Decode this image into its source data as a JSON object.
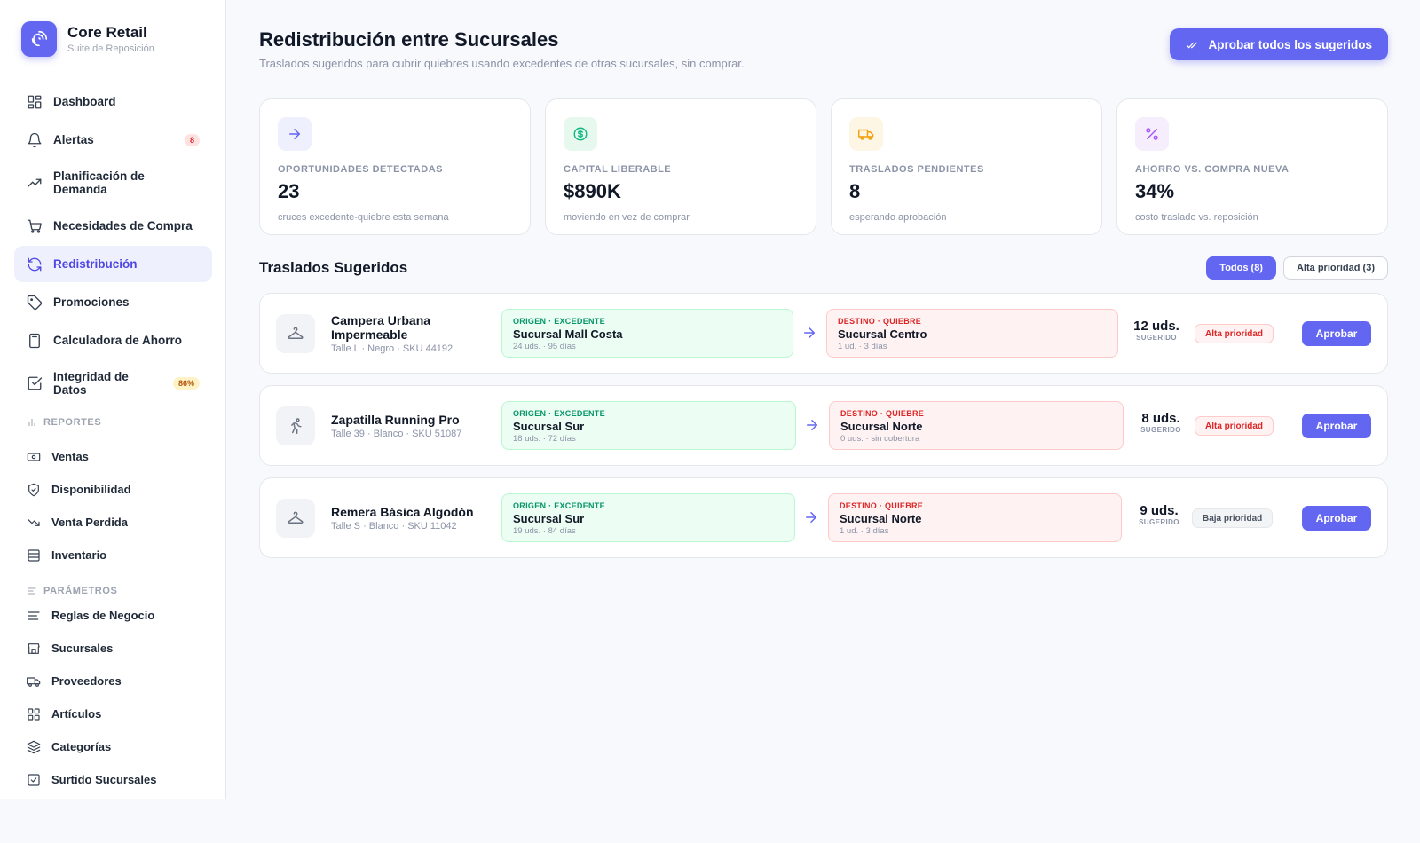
{
  "brand": {
    "title": "Core Retail",
    "subtitle": "Suite de Reposición"
  },
  "nav": [
    {
      "label": "Dashboard",
      "icon": "dashboard-icon"
    },
    {
      "label": "Alertas",
      "icon": "bell-icon",
      "badge": "8"
    },
    {
      "label": "Planificación de Demanda",
      "icon": "trend-icon"
    },
    {
      "label": "Necesidades de Compra",
      "icon": "cart-icon"
    },
    {
      "label": "Redistribución",
      "icon": "refresh-icon",
      "active": true
    },
    {
      "label": "Promociones",
      "icon": "tag-icon"
    },
    {
      "label": "Calculadora de Ahorro",
      "icon": "calculator-icon"
    },
    {
      "label": "Integridad de Datos",
      "icon": "check-square-icon",
      "badge": "86%"
    }
  ],
  "reportes": {
    "label": "REPORTES",
    "items": [
      {
        "label": "Ventas",
        "icon": "money-icon"
      },
      {
        "label": "Disponibilidad",
        "icon": "shield-icon"
      },
      {
        "label": "Venta Perdida",
        "icon": "trend-down-icon"
      },
      {
        "label": "Inventario",
        "icon": "inventory-icon"
      }
    ]
  },
  "parametros": {
    "label": "PARÁMETROS",
    "items": [
      {
        "label": "Reglas de Negocio",
        "icon": "list-icon"
      },
      {
        "label": "Sucursales",
        "icon": "store-icon"
      },
      {
        "label": "Proveedores",
        "icon": "truck-icon"
      },
      {
        "label": "Artículos",
        "icon": "grid-icon"
      },
      {
        "label": "Categorías",
        "icon": "layers-icon"
      },
      {
        "label": "Surtido Sucursales",
        "icon": "checkbox-icon"
      }
    ]
  },
  "header": {
    "title": "Redistribución entre Sucursales",
    "subtitle": "Traslados sugeridos para cubrir quiebres usando excedentes de otras sucursales, sin comprar.",
    "approve_all": "Aprobar todos los sugeridos"
  },
  "kpis": [
    {
      "label": "OPORTUNIDADES DETECTADAS",
      "value": "23",
      "note": "cruces excedente-quiebre esta semana",
      "icon": "arrow-right-icon",
      "color": "#6366f1",
      "bg": "#eef0fd"
    },
    {
      "label": "CAPITAL LIBERABLE",
      "value": "$890K",
      "note": "moviendo en vez de comprar",
      "icon": "dollar-icon",
      "color": "#10b981",
      "bg": "#e7f8ef"
    },
    {
      "label": "TRASLADOS PENDIENTES",
      "value": "8",
      "note": "esperando aprobación",
      "icon": "truck-icon",
      "color": "#f59e0b",
      "bg": "#fef6e4"
    },
    {
      "label": "AHORRO VS. COMPRA NUEVA",
      "value": "34%",
      "note": "costo traslado vs. reposición",
      "icon": "percent-icon",
      "color": "#a855f7",
      "bg": "#f6eefd"
    }
  ],
  "section": {
    "title": "Traslados Sugeridos",
    "filters": [
      {
        "label": "Todos (8)",
        "active": true
      },
      {
        "label": "Alta prioridad (3)",
        "active": false
      }
    ]
  },
  "transfers": [
    {
      "name": "Campera Urbana Impermeable",
      "meta": "Talle L · Negro · SKU 44192",
      "icon": "hanger-icon",
      "origin_tag": "ORIGEN · EXCEDENTE",
      "origin_name": "Sucursal Mall Costa",
      "origin_meta": "24 uds. · 95 días",
      "dest_tag": "DESTINO · QUIEBRE",
      "dest_name": "Sucursal Centro",
      "dest_meta": "1 ud. · 3 días",
      "qty": "12 uds.",
      "qty_sub": "SUGERIDO",
      "priority": "Alta prioridad",
      "priority_level": "high",
      "action": "Aprobar"
    },
    {
      "name": "Zapatilla Running Pro",
      "meta": "Talle 39 · Blanco · SKU 51087",
      "icon": "runner-icon",
      "origin_tag": "ORIGEN · EXCEDENTE",
      "origin_name": "Sucursal Sur",
      "origin_meta": "18 uds. · 72 días",
      "dest_tag": "DESTINO · QUIEBRE",
      "dest_name": "Sucursal Norte",
      "dest_meta": "0 uds. · sin cobertura",
      "qty": "8 uds.",
      "qty_sub": "SUGERIDO",
      "priority": "Alta prioridad",
      "priority_level": "high",
      "action": "Aprobar"
    },
    {
      "name": "Remera Básica Algodón",
      "meta": "Talle S · Blanco · SKU 11042",
      "icon": "hanger-icon",
      "origin_tag": "ORIGEN · EXCEDENTE",
      "origin_name": "Sucursal Sur",
      "origin_meta": "19 uds. · 84 días",
      "dest_tag": "DESTINO · QUIEBRE",
      "dest_name": "Sucursal Norte",
      "dest_meta": "1 ud. · 3 días",
      "qty": "9 uds.",
      "qty_sub": "SUGERIDO",
      "priority": "Baja prioridad",
      "priority_level": "low",
      "action": "Aprobar"
    }
  ]
}
